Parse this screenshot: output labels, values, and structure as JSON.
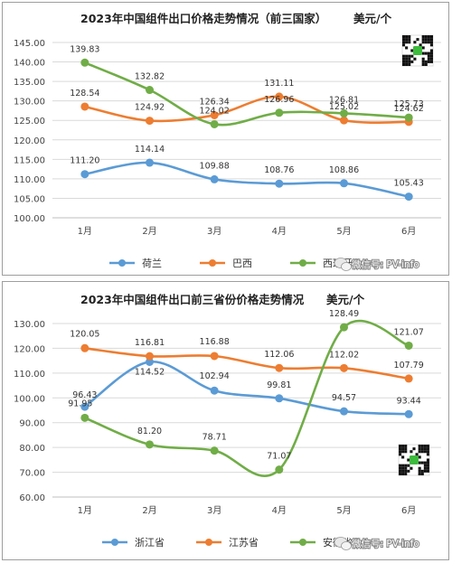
{
  "chart_data": [
    {
      "type": "line",
      "title": "2023年中国组件出口价格走势情况（前三国家）",
      "unit": "美元/个",
      "categories": [
        "1月",
        "2月",
        "3月",
        "4月",
        "5月",
        "6月"
      ],
      "ylim": [
        100,
        145
      ],
      "yticks": [
        "100.00",
        "105.00",
        "110.00",
        "115.00",
        "120.00",
        "125.00",
        "130.00",
        "135.00",
        "140.00",
        "145.00"
      ],
      "grid": true,
      "legend_position": "bottom",
      "series": [
        {
          "name": "荷兰",
          "color": "#5b9bd5",
          "values": [
            111.2,
            114.14,
            109.88,
            108.76,
            108.86,
            105.43
          ],
          "labels": [
            "111.20",
            "114.14",
            "109.88",
            "108.76",
            "108.86",
            "105.43"
          ]
        },
        {
          "name": "巴西",
          "color": "#ed7d31",
          "values": [
            128.54,
            124.92,
            126.34,
            131.11,
            125.02,
            124.62
          ],
          "labels": [
            "128.54",
            "124.92",
            "126.34",
            "131.11",
            "125.02",
            "124.62"
          ]
        },
        {
          "name": "西班牙",
          "color": "#70ad47",
          "values": [
            139.83,
            132.82,
            124.02,
            126.96,
            126.81,
            125.73
          ],
          "labels": [
            "139.83",
            "132.82",
            "124.02",
            "126.96",
            "126.81",
            "125.73"
          ]
        }
      ]
    },
    {
      "type": "line",
      "title": "2023年中国组件出口前三省份价格走势情况",
      "unit": "美元/个",
      "categories": [
        "1月",
        "2月",
        "3月",
        "4月",
        "5月",
        "6月"
      ],
      "ylim": [
        60,
        130
      ],
      "yticks": [
        "60.00",
        "70.00",
        "80.00",
        "90.00",
        "100.00",
        "110.00",
        "120.00",
        "130.00"
      ],
      "grid": true,
      "legend_position": "bottom",
      "series": [
        {
          "name": "浙江省",
          "color": "#5b9bd5",
          "values": [
            96.43,
            114.52,
            102.94,
            99.81,
            94.57,
            93.44
          ],
          "labels": [
            "96.43",
            "114.52",
            "102.94",
            "99.81",
            "94.57",
            "93.44"
          ]
        },
        {
          "name": "江苏省",
          "color": "#ed7d31",
          "values": [
            120.05,
            116.81,
            116.88,
            112.06,
            112.02,
            107.79
          ],
          "labels": [
            "120.05",
            "116.81",
            "116.88",
            "112.06",
            "112.02",
            "107.79"
          ]
        },
        {
          "name": "安徽省",
          "color": "#70ad47",
          "values": [
            91.95,
            81.2,
            78.71,
            71.07,
            128.49,
            121.07
          ],
          "labels": [
            "91.95",
            "81.20",
            "78.71",
            "71.07",
            "128.49",
            "121.07"
          ]
        }
      ]
    }
  ],
  "watermark": {
    "text": "微信号: PV-info",
    "icon": "wechat-icon"
  },
  "qr_icon": "qr-code-icon"
}
